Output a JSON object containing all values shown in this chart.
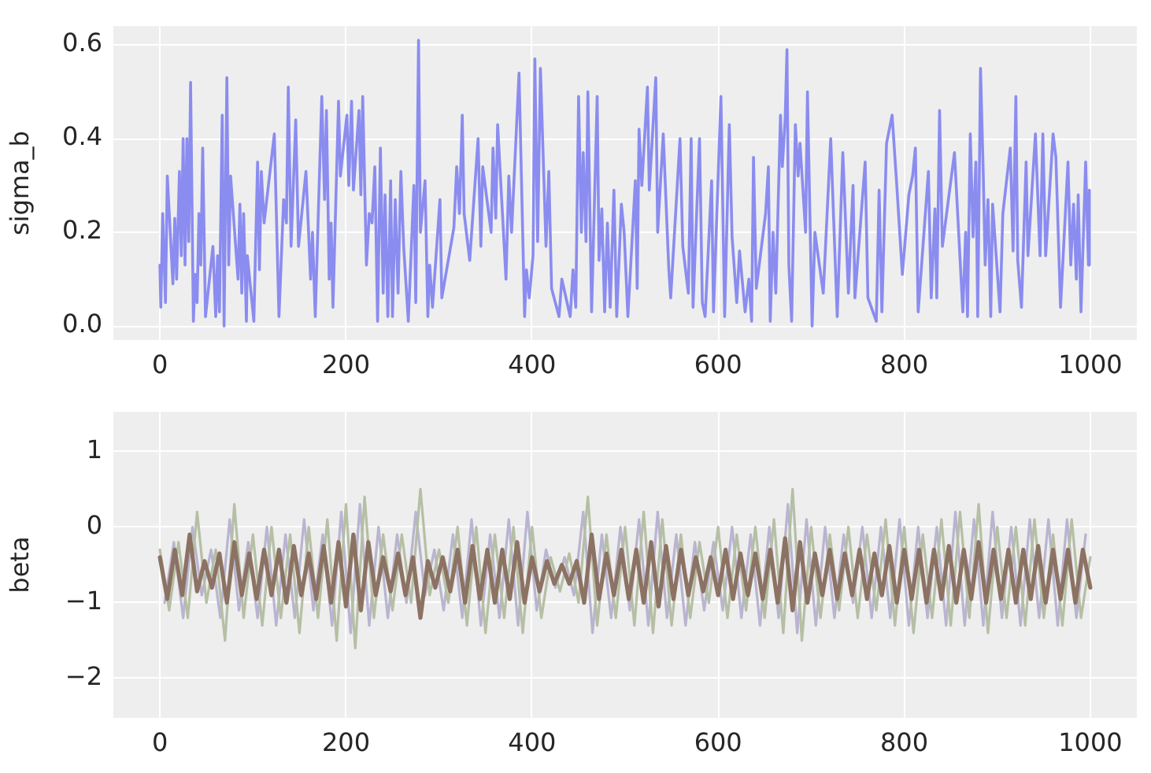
{
  "chart_data": [
    {
      "type": "line",
      "ylabel": "sigma_b",
      "xlim": [
        -50,
        1050
      ],
      "xticks": [
        0,
        200,
        400,
        600,
        800,
        1000
      ],
      "ylim": [
        -0.03,
        0.64
      ],
      "yticks": [
        {
          "value": 0,
          "label": "0.0"
        },
        0.2,
        0.4,
        0.6
      ],
      "grid": true,
      "marker": "none",
      "series": [
        {
          "color": "#8a8cef",
          "x": [
            0,
            1,
            3,
            6,
            8,
            14,
            16,
            18,
            21,
            23,
            25,
            27,
            29,
            31,
            33,
            36,
            38,
            40,
            42,
            44,
            46,
            49,
            57,
            60,
            62,
            64,
            67,
            69,
            72,
            74,
            76,
            84,
            86,
            88,
            90,
            93,
            94,
            101,
            105,
            107,
            109,
            112,
            123,
            128,
            133,
            136,
            138,
            141,
            146,
            149,
            157,
            162,
            164,
            167,
            174,
            177,
            179,
            182,
            184,
            186,
            192,
            194,
            201,
            203,
            206,
            208,
            214,
            216,
            218,
            222,
            225,
            228,
            231,
            234,
            237,
            240,
            242,
            245,
            248,
            250,
            253,
            256,
            259,
            262,
            267,
            273,
            275,
            278,
            280,
            285,
            288,
            290,
            293,
            301,
            303,
            316,
            319,
            322,
            325,
            327,
            333,
            342,
            345,
            347,
            356,
            358,
            361,
            363,
            372,
            375,
            378,
            386,
            392,
            394,
            397,
            401,
            403,
            406,
            409,
            415,
            418,
            421,
            429,
            432,
            441,
            444,
            447,
            450,
            453,
            455,
            458,
            460,
            464,
            470,
            472,
            475,
            478,
            481,
            484,
            488,
            491,
            496,
            499,
            503,
            511,
            513,
            515,
            518,
            524,
            526,
            533,
            535,
            541,
            547,
            549,
            559,
            562,
            568,
            571,
            573,
            580,
            583,
            586,
            593,
            595,
            603,
            607,
            612,
            615,
            620,
            623,
            629,
            633,
            636,
            638,
            641,
            651,
            654,
            656,
            659,
            662,
            667,
            669,
            672,
            674,
            676,
            679,
            683,
            686,
            688,
            694,
            696,
            701,
            704,
            713,
            721,
            728,
            734,
            740,
            745,
            747,
            758,
            761,
            770,
            773,
            776,
            781,
            787,
            792,
            798,
            805,
            809,
            812,
            815,
            826,
            829,
            833,
            835,
            838,
            841,
            854,
            863,
            866,
            868,
            871,
            874,
            877,
            879,
            882,
            885,
            887,
            890,
            893,
            895,
            903,
            906,
            914,
            917,
            920,
            922,
            926,
            931,
            933,
            941,
            946,
            949,
            952,
            960,
            963,
            968,
            976,
            979,
            982,
            985,
            987,
            990,
            995,
            998,
            999
          ],
          "values": [
            0.13,
            0.04,
            0.24,
            0.05,
            0.32,
            0.09,
            0.23,
            0.1,
            0.33,
            0.15,
            0.4,
            0.13,
            0.4,
            0.18,
            0.52,
            0.01,
            0.11,
            0.05,
            0.24,
            0.13,
            0.38,
            0.02,
            0.17,
            0.02,
            0.15,
            0.03,
            0.45,
            0.0,
            0.53,
            0.13,
            0.32,
            0.1,
            0.26,
            0.07,
            0.24,
            0.01,
            0.15,
            0.01,
            0.35,
            0.12,
            0.33,
            0.22,
            0.41,
            0.02,
            0.27,
            0.22,
            0.51,
            0.17,
            0.44,
            0.17,
            0.33,
            0.1,
            0.2,
            0.02,
            0.49,
            0.27,
            0.46,
            0.1,
            0.22,
            0.04,
            0.48,
            0.32,
            0.45,
            0.3,
            0.48,
            0.29,
            0.46,
            0.28,
            0.49,
            0.13,
            0.24,
            0.22,
            0.34,
            0.01,
            0.38,
            0.07,
            0.28,
            0.02,
            0.31,
            0.02,
            0.27,
            0.07,
            0.33,
            0.17,
            0.01,
            0.3,
            0.05,
            0.61,
            0.2,
            0.31,
            0.02,
            0.13,
            0.04,
            0.27,
            0.06,
            0.21,
            0.34,
            0.24,
            0.45,
            0.24,
            0.14,
            0.4,
            0.17,
            0.34,
            0.2,
            0.38,
            0.23,
            0.43,
            0.1,
            0.32,
            0.2,
            0.54,
            0.02,
            0.12,
            0.06,
            0.15,
            0.57,
            0.18,
            0.55,
            0.17,
            0.33,
            0.08,
            0.02,
            0.1,
            0.02,
            0.12,
            0.04,
            0.49,
            0.2,
            0.37,
            0.18,
            0.5,
            0.03,
            0.49,
            0.14,
            0.25,
            0.03,
            0.22,
            0.04,
            0.29,
            0.02,
            0.26,
            0.2,
            0.02,
            0.31,
            0.08,
            0.42,
            0.3,
            0.51,
            0.29,
            0.53,
            0.2,
            0.41,
            0.12,
            0.06,
            0.4,
            0.17,
            0.07,
            0.4,
            0.04,
            0.4,
            0.05,
            0.02,
            0.31,
            0.03,
            0.49,
            0.02,
            0.43,
            0.19,
            0.05,
            0.16,
            0.03,
            0.1,
            0.01,
            0.36,
            0.08,
            0.24,
            0.34,
            0.01,
            0.2,
            0.07,
            0.45,
            0.34,
            0.44,
            0.59,
            0.13,
            0.01,
            0.43,
            0.32,
            0.39,
            0.2,
            0.5,
            0.0,
            0.2,
            0.07,
            0.4,
            0.02,
            0.37,
            0.07,
            0.3,
            0.06,
            0.35,
            0.06,
            0.01,
            0.29,
            0.03,
            0.39,
            0.45,
            0.3,
            0.11,
            0.28,
            0.32,
            0.38,
            0.03,
            0.33,
            0.06,
            0.25,
            0.06,
            0.46,
            0.17,
            0.37,
            0.03,
            0.2,
            0.02,
            0.41,
            0.19,
            0.35,
            0.02,
            0.55,
            0.32,
            0.13,
            0.27,
            0.02,
            0.26,
            0.03,
            0.24,
            0.38,
            0.16,
            0.49,
            0.14,
            0.04,
            0.35,
            0.15,
            0.41,
            0.15,
            0.41,
            0.15,
            0.41,
            0.36,
            0.04,
            0.35,
            0.13,
            0.26,
            0.1,
            0.28,
            0.03,
            0.35,
            0.13,
            0.29
          ]
        }
      ]
    },
    {
      "type": "line",
      "ylabel": "beta",
      "xlim": [
        -50,
        1050
      ],
      "xticks": [
        0,
        200,
        400,
        600,
        800,
        1000
      ],
      "ylim": [
        -2.52,
        1.52
      ],
      "yticks": [
        {
          "value": -2,
          "label": "−2"
        },
        {
          "value": -1,
          "label": "−1"
        },
        0,
        1
      ],
      "grid": true,
      "marker": "none",
      "series": [
        {
          "color": "#8c7263",
          "x": [
            0,
            8,
            16,
            24,
            32,
            40,
            48,
            56,
            64,
            72,
            80,
            88,
            96,
            104,
            112,
            120,
            128,
            136,
            144,
            152,
            160,
            168,
            176,
            184,
            192,
            200,
            208,
            216,
            224,
            232,
            240,
            248,
            256,
            264,
            272,
            280,
            288,
            296,
            304,
            312,
            320,
            328,
            336,
            344,
            352,
            360,
            368,
            376,
            384,
            392,
            400,
            408,
            416,
            424,
            432,
            440,
            448,
            456,
            464,
            472,
            480,
            488,
            496,
            504,
            512,
            520,
            528,
            536,
            544,
            552,
            560,
            568,
            576,
            584,
            592,
            600,
            608,
            616,
            624,
            632,
            640,
            648,
            656,
            664,
            672,
            680,
            688,
            696,
            704,
            712,
            720,
            728,
            736,
            744,
            752,
            760,
            768,
            776,
            784,
            792,
            800,
            808,
            816,
            824,
            832,
            840,
            848,
            856,
            864,
            872,
            880,
            888,
            896,
            904,
            912,
            920,
            928,
            936,
            944,
            952,
            960,
            968,
            976,
            984,
            992,
            1000
          ],
          "values": [
            -0.4,
            -0.95,
            -0.3,
            -0.9,
            -0.1,
            -0.85,
            -0.45,
            -0.8,
            -0.35,
            -1.0,
            -0.2,
            -0.9,
            -0.35,
            -0.95,
            -0.3,
            -0.9,
            -0.3,
            -1.0,
            -0.25,
            -0.9,
            -0.35,
            -0.95,
            -0.25,
            -1.0,
            -0.2,
            -1.05,
            -0.1,
            -1.1,
            -0.2,
            -0.9,
            -0.4,
            -0.85,
            -0.35,
            -0.9,
            -0.4,
            -1.2,
            -0.45,
            -0.8,
            -0.4,
            -0.85,
            -0.3,
            -1.0,
            -0.25,
            -0.95,
            -0.3,
            -1.0,
            -0.3,
            -0.95,
            -0.2,
            -1.0,
            -0.4,
            -0.85,
            -0.45,
            -0.75,
            -0.5,
            -0.75,
            -0.45,
            -1.0,
            -0.1,
            -0.95,
            -0.35,
            -0.9,
            -0.3,
            -0.95,
            -0.3,
            -1.0,
            -0.2,
            -1.05,
            -0.25,
            -0.95,
            -0.3,
            -0.9,
            -0.4,
            -0.85,
            -0.4,
            -0.9,
            -0.3,
            -0.95,
            -0.35,
            -0.9,
            -0.35,
            -0.95,
            -0.3,
            -1.0,
            -0.15,
            -1.1,
            -0.2,
            -1.0,
            -0.35,
            -0.9,
            -0.3,
            -0.95,
            -0.35,
            -0.9,
            -0.3,
            -0.95,
            -0.35,
            -0.9,
            -0.25,
            -1.0,
            -0.3,
            -0.95,
            -0.3,
            -1.0,
            -0.3,
            -0.95,
            -0.25,
            -1.0,
            -0.3,
            -0.95,
            -0.2,
            -1.0,
            -0.3,
            -0.95,
            -0.3,
            -1.0,
            -0.3,
            -0.95,
            -0.25,
            -1.0,
            -0.3,
            -0.95,
            -0.3,
            -1.0,
            -0.3,
            -0.8
          ]
        },
        {
          "color": "#b5bfa4",
          "x": [
            0,
            10,
            20,
            30,
            40,
            50,
            60,
            70,
            80,
            90,
            100,
            110,
            120,
            130,
            140,
            150,
            160,
            170,
            180,
            190,
            200,
            210,
            220,
            230,
            240,
            250,
            260,
            270,
            280,
            290,
            300,
            310,
            320,
            330,
            340,
            350,
            360,
            370,
            380,
            390,
            400,
            410,
            420,
            430,
            440,
            450,
            460,
            470,
            480,
            490,
            500,
            510,
            520,
            530,
            540,
            550,
            560,
            570,
            580,
            590,
            600,
            610,
            620,
            630,
            640,
            650,
            660,
            670,
            680,
            690,
            700,
            710,
            720,
            730,
            740,
            750,
            760,
            770,
            780,
            790,
            800,
            810,
            820,
            830,
            840,
            850,
            860,
            870,
            880,
            890,
            900,
            910,
            920,
            930,
            940,
            950,
            960,
            970,
            980,
            990,
            1000
          ],
          "values": [
            -0.3,
            -1.1,
            -0.2,
            -1.2,
            0.2,
            -1.0,
            -0.3,
            -1.5,
            0.3,
            -1.2,
            -0.1,
            -1.3,
            0.0,
            -1.2,
            -0.1,
            -1.4,
            0.0,
            -1.2,
            0.1,
            -1.5,
            0.3,
            -1.6,
            0.4,
            -1.2,
            -0.1,
            -1.1,
            -0.1,
            -1.0,
            0.5,
            -0.9,
            -0.3,
            -1.0,
            0.0,
            -1.3,
            0.0,
            -1.4,
            -0.1,
            -1.2,
            0.0,
            -1.4,
            0.0,
            -1.2,
            -0.4,
            -0.85,
            -0.35,
            -1.0,
            0.4,
            -1.3,
            -0.1,
            -1.2,
            0.0,
            -1.3,
            0.2,
            -1.4,
            0.1,
            -1.3,
            -0.1,
            -1.2,
            -0.2,
            -1.0,
            0.0,
            -1.2,
            -0.1,
            -1.1,
            0.0,
            -1.2,
            0.1,
            -1.4,
            0.5,
            -1.5,
            0.0,
            -1.2,
            -0.1,
            -1.1,
            0.0,
            -1.2,
            -0.1,
            -1.1,
            0.1,
            -1.3,
            0.0,
            -1.4,
            -0.1,
            -1.2,
            0.1,
            -1.3,
            0.2,
            -1.2,
            0.3,
            -1.4,
            0.0,
            -1.2,
            0.0,
            -1.3,
            0.1,
            -1.2,
            -0.1,
            -1.3,
            0.1,
            -1.2,
            -0.4
          ]
        },
        {
          "color": "#b9b4d0",
          "x": [
            5,
            15,
            25,
            35,
            45,
            55,
            65,
            75,
            85,
            95,
            105,
            115,
            125,
            135,
            145,
            155,
            165,
            175,
            185,
            195,
            205,
            215,
            225,
            235,
            245,
            255,
            265,
            275,
            285,
            295,
            305,
            315,
            325,
            335,
            345,
            355,
            365,
            375,
            385,
            395,
            405,
            415,
            425,
            435,
            445,
            455,
            465,
            475,
            485,
            495,
            505,
            515,
            525,
            535,
            545,
            555,
            565,
            575,
            585,
            595,
            605,
            615,
            625,
            635,
            645,
            655,
            665,
            675,
            685,
            695,
            705,
            715,
            725,
            735,
            745,
            755,
            765,
            775,
            785,
            795,
            805,
            815,
            825,
            835,
            845,
            855,
            865,
            875,
            885,
            895,
            905,
            915,
            925,
            935,
            945,
            955,
            965,
            975,
            985,
            995
          ],
          "values": [
            -1.0,
            -0.2,
            -1.2,
            0.0,
            -0.9,
            -0.3,
            -1.2,
            0.1,
            -1.1,
            -0.2,
            -1.2,
            0.0,
            -1.3,
            -0.1,
            -1.2,
            0.1,
            -1.1,
            -0.1,
            -1.3,
            0.2,
            -1.4,
            0.3,
            -1.3,
            0.0,
            -1.2,
            -0.1,
            -1.0,
            0.2,
            -0.9,
            -0.3,
            -1.1,
            -0.1,
            -1.2,
            0.1,
            -1.3,
            -0.1,
            -1.2,
            0.1,
            -1.3,
            0.2,
            -1.1,
            -0.3,
            -0.8,
            -0.4,
            -0.9,
            0.2,
            -1.4,
            -0.1,
            -1.2,
            0.0,
            -1.1,
            0.1,
            -1.3,
            0.2,
            -1.2,
            -0.1,
            -1.3,
            -0.2,
            -1.1,
            -0.2,
            -1.1,
            0.0,
            -1.2,
            -0.1,
            -1.3,
            0.0,
            -1.2,
            0.3,
            -1.4,
            0.1,
            -1.3,
            0.0,
            -1.2,
            -0.1,
            -1.0,
            0.0,
            -1.2,
            0.0,
            -1.2,
            0.1,
            -1.3,
            0.0,
            -1.2,
            0.0,
            -1.3,
            0.2,
            -1.3,
            0.1,
            -1.3,
            0.2,
            -1.2,
            0.0,
            -1.3,
            0.1,
            -1.2,
            0.1,
            -1.3,
            0.1,
            -1.2,
            -0.1
          ]
        }
      ]
    }
  ]
}
